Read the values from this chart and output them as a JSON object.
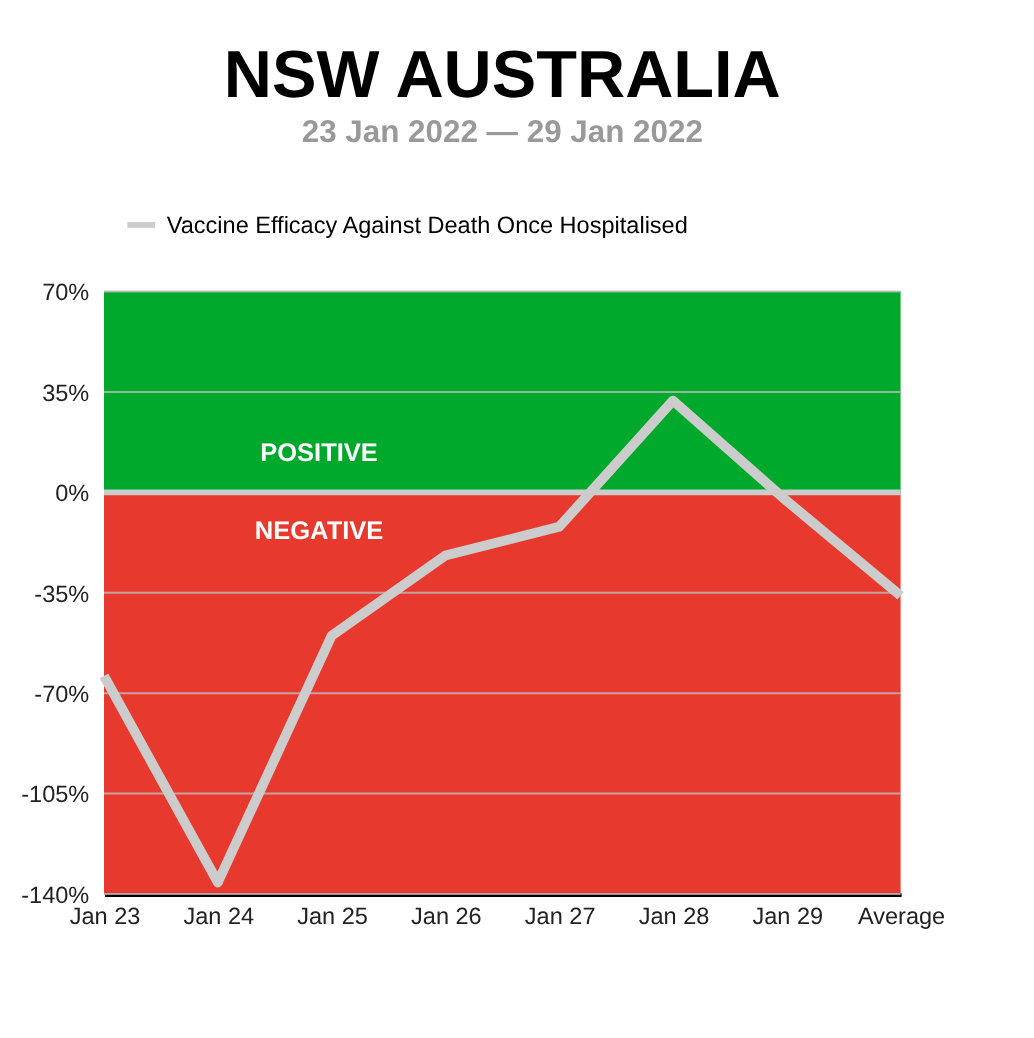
{
  "chart_data": {
    "type": "line",
    "title": "NSW AUSTRALIA",
    "subtitle": "23 Jan 2022 — 29 Jan 2022",
    "categories": [
      "Jan 23",
      "Jan 24",
      "Jan 25",
      "Jan 26",
      "Jan 27",
      "Jan 28",
      "Jan 29",
      "Average"
    ],
    "series": [
      {
        "name": "Vaccine Efficacy Against Death Once Hospitalised",
        "color": "#cccccc",
        "values": [
          -64,
          -136,
          -50,
          -22,
          -12,
          32,
          -3,
          -36
        ]
      }
    ],
    "ylim": [
      -140,
      70
    ],
    "yticks": [
      {
        "value": 70,
        "label": "70%"
      },
      {
        "value": 35,
        "label": "35%"
      },
      {
        "value": 0,
        "label": "0%"
      },
      {
        "value": -35,
        "label": "-35%"
      },
      {
        "value": -70,
        "label": "-70%"
      },
      {
        "value": -105,
        "label": "-105%"
      },
      {
        "value": -140,
        "label": "-140%"
      }
    ],
    "bands": [
      {
        "axis": "y",
        "from": 0,
        "to": 70,
        "label": "POSITIVE",
        "color": "#00a82c"
      },
      {
        "axis": "y",
        "from": -140,
        "to": 0,
        "label": "NEGATIVE",
        "color": "#e8392e"
      }
    ],
    "ref_lines": [
      {
        "axis": "y",
        "value": 0,
        "color": "#cccccc"
      }
    ],
    "grid": "y",
    "legend": "top",
    "marker": "none",
    "line_style": "solid"
  }
}
